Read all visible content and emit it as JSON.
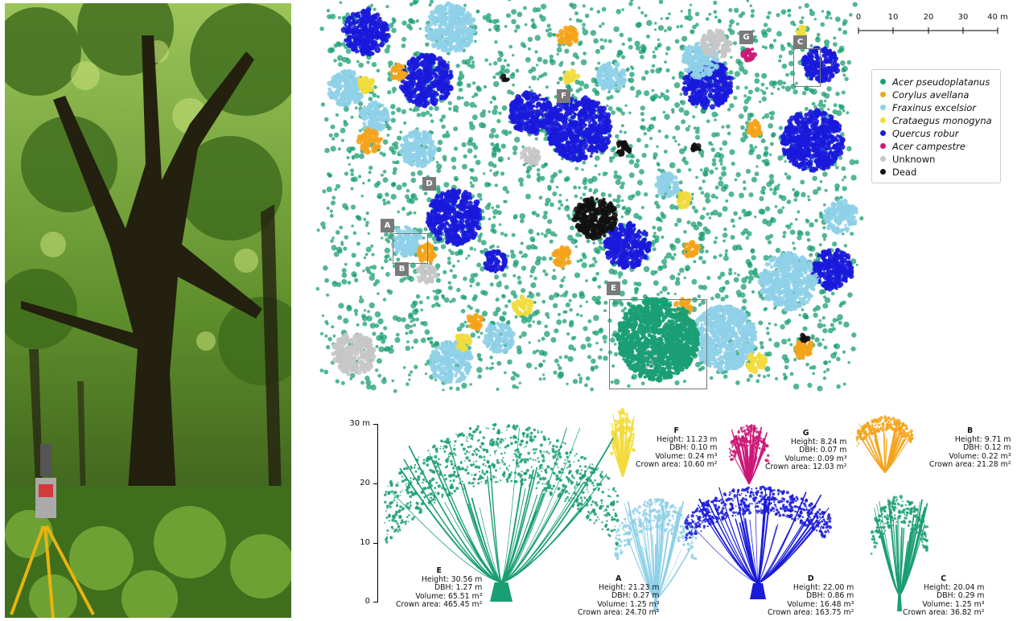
{
  "map": {
    "labels": [
      "A",
      "B",
      "C",
      "D",
      "E",
      "F",
      "G"
    ],
    "scale_bar": {
      "ticks": [
        "0",
        "10",
        "20",
        "30",
        "40 m"
      ]
    }
  },
  "legend": {
    "items": [
      {
        "name": "Acer pseudoplatanus",
        "color": "#1a9e74",
        "italic": true
      },
      {
        "name": "Corylus avellana",
        "color": "#f5a31a",
        "italic": true
      },
      {
        "name": "Fraxinus excelsior",
        "color": "#8fd0e8",
        "italic": true
      },
      {
        "name": "Crataegus monogyna",
        "color": "#f2dc3c",
        "italic": true
      },
      {
        "name": "Quercus robur",
        "color": "#1a1adb",
        "italic": true
      },
      {
        "name": "Acer campestre",
        "color": "#cc1777",
        "italic": true
      },
      {
        "name": "Unknown",
        "color": "#c7c7c7",
        "italic": false
      },
      {
        "name": "Dead",
        "color": "#111111",
        "italic": false
      }
    ]
  },
  "height_axis": {
    "ticks": [
      "0",
      "10",
      "20",
      "30 m"
    ]
  },
  "trees": [
    {
      "id": "E",
      "height": "Height: 30.56 m",
      "dbh": "DBH: 1.27 m",
      "volume": "Volume: 65.51 m³",
      "crown": "Crown area: 465.45 m²"
    },
    {
      "id": "A",
      "height": "Height: 21.23 m",
      "dbh": "DBH: 0.27 m",
      "volume": "Volume: 1.25 m³",
      "crown": "Crown area: 24.70 m²"
    },
    {
      "id": "D",
      "height": "Height: 22.00 m",
      "dbh": "DBH: 0.86 m",
      "volume": "Volume: 16.48 m³",
      "crown": "Crown area: 163.75 m²"
    },
    {
      "id": "C",
      "height": "Height: 20.04 m",
      "dbh": "DBH: 0.29 m",
      "volume": "Volume: 1.25 m³",
      "crown": "Crown area: 36.82 m²"
    },
    {
      "id": "F",
      "height": "Height: 11.23 m",
      "dbh": "DBH: 0.10 m",
      "volume": "Volume: 0.24 m³",
      "crown": "Crown area: 10.60 m²"
    },
    {
      "id": "G",
      "height": "Height: 8.24 m",
      "dbh": "DBH: 0.07 m",
      "volume": "Volume: 0.09 m³",
      "crown": "Crown area: 12.03 m²"
    },
    {
      "id": "B",
      "height": "Height: 9.71 m",
      "dbh": "DBH: 0.12 m",
      "volume": "Volume: 0.22 m³",
      "crown": "Crown area: 21.28 m²"
    }
  ]
}
